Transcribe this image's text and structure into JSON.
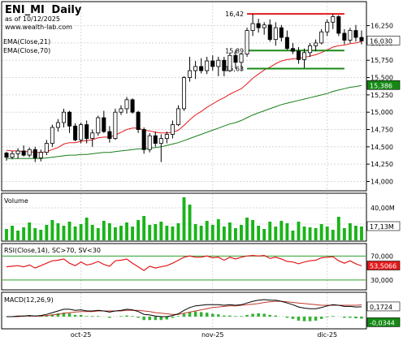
{
  "header": {
    "symbol": "ENI_MI",
    "interval": "Daily",
    "asof": "as of 10/12/2025",
    "site": "www.wealth-lab.com"
  },
  "colors": {
    "up_body": "#ffffff",
    "down_body": "#000000",
    "candle_outline": "#000000",
    "ema21": "#e31a1c",
    "ema70": "#1a7f1a",
    "resistance": "#e31a1c",
    "support": "#1a8a1a",
    "volume": "#19b419",
    "rsi_line": "#e31a1c",
    "rsi_band": "#2aa02a",
    "macd": "#000000",
    "macd_signal": "#c0392b",
    "macd_hist": "#33b233",
    "last_price_box": "#ffffff",
    "ema70_box": "#148a14",
    "rsi_box": "#e31a1c",
    "macd_neg_box": "#148a14"
  },
  "chart_data": [
    {
      "type": "candlestick",
      "name": "price",
      "x_labels": [
        {
          "label": "oct-25",
          "index": 13
        },
        {
          "label": "nov-25",
          "index": 36
        },
        {
          "label": "dic-25",
          "index": 56
        }
      ],
      "ohlc": [
        [
          14.41,
          14.43,
          14.3,
          14.35
        ],
        [
          14.35,
          14.44,
          14.32,
          14.4
        ],
        [
          14.4,
          14.48,
          14.33,
          14.44
        ],
        [
          14.44,
          14.52,
          14.36,
          14.38
        ],
        [
          14.38,
          14.49,
          14.35,
          14.46
        ],
        [
          14.46,
          14.5,
          14.28,
          14.34
        ],
        [
          14.34,
          14.46,
          14.29,
          14.42
        ],
        [
          14.42,
          14.6,
          14.38,
          14.55
        ],
        [
          14.55,
          14.82,
          14.5,
          14.78
        ],
        [
          14.78,
          14.9,
          14.72,
          14.85
        ],
        [
          14.85,
          15.05,
          14.78,
          15.0
        ],
        [
          15.0,
          15.02,
          14.7,
          14.8
        ],
        [
          14.8,
          14.84,
          14.58,
          14.6
        ],
        [
          14.6,
          14.85,
          14.55,
          14.82
        ],
        [
          14.82,
          14.88,
          14.55,
          14.62
        ],
        [
          14.62,
          14.75,
          14.5,
          14.7
        ],
        [
          14.7,
          14.95,
          14.66,
          14.92
        ],
        [
          14.92,
          15.02,
          14.7,
          14.72
        ],
        [
          14.72,
          14.8,
          14.56,
          14.62
        ],
        [
          14.62,
          15.05,
          14.6,
          15.0
        ],
        [
          15.0,
          15.1,
          14.96,
          15.05
        ],
        [
          15.05,
          15.22,
          14.98,
          15.18
        ],
        [
          15.18,
          15.2,
          14.98,
          15.0
        ],
        [
          15.0,
          15.02,
          14.7,
          14.75
        ],
        [
          14.75,
          14.78,
          14.4,
          14.46
        ],
        [
          14.46,
          14.7,
          14.42,
          14.66
        ],
        [
          14.66,
          14.72,
          14.5,
          14.55
        ],
        [
          14.55,
          14.68,
          14.28,
          14.62
        ],
        [
          14.62,
          14.72,
          14.55,
          14.68
        ],
        [
          14.68,
          14.88,
          14.62,
          14.82
        ],
        [
          14.82,
          15.1,
          14.8,
          15.05
        ],
        [
          15.05,
          15.52,
          15.02,
          15.5
        ],
        [
          15.5,
          15.8,
          15.44,
          15.6
        ],
        [
          15.6,
          15.74,
          15.48,
          15.66
        ],
        [
          15.66,
          15.78,
          15.56,
          15.6
        ],
        [
          15.6,
          15.8,
          15.55,
          15.74
        ],
        [
          15.74,
          15.82,
          15.6,
          15.66
        ],
        [
          15.66,
          15.8,
          15.52,
          15.75
        ],
        [
          15.75,
          15.8,
          15.52,
          15.6
        ],
        [
          15.6,
          15.86,
          15.58,
          15.82
        ],
        [
          15.82,
          15.9,
          15.63,
          15.72
        ],
        [
          15.72,
          15.85,
          15.6,
          15.84
        ],
        [
          15.84,
          16.22,
          15.8,
          16.18
        ],
        [
          16.18,
          16.42,
          16.1,
          16.28
        ],
        [
          16.28,
          16.35,
          16.15,
          16.22
        ],
        [
          16.22,
          16.3,
          16.12,
          16.26
        ],
        [
          16.26,
          16.34,
          16.02,
          16.05
        ],
        [
          16.05,
          16.3,
          15.96,
          16.22
        ],
        [
          16.22,
          16.26,
          16.02,
          16.08
        ],
        [
          16.08,
          16.18,
          15.9,
          15.92
        ],
        [
          15.92,
          16.0,
          15.84,
          15.88
        ],
        [
          15.88,
          15.94,
          15.7,
          15.76
        ],
        [
          15.76,
          15.92,
          15.64,
          15.86
        ],
        [
          15.86,
          16.0,
          15.8,
          15.96
        ],
        [
          15.96,
          16.05,
          15.88,
          16.0
        ],
        [
          16.0,
          16.2,
          15.98,
          16.16
        ],
        [
          16.16,
          16.34,
          16.1,
          16.3
        ],
        [
          16.3,
          16.42,
          16.2,
          16.38
        ],
        [
          16.38,
          16.4,
          16.1,
          16.14
        ],
        [
          16.14,
          16.2,
          15.98,
          16.04
        ],
        [
          16.04,
          16.22,
          16.0,
          16.18
        ],
        [
          16.18,
          16.26,
          16.02,
          16.08
        ],
        [
          16.08,
          16.18,
          15.98,
          16.03
        ]
      ],
      "ema21": [
        14.45,
        14.44,
        14.44,
        14.43,
        14.43,
        14.42,
        14.42,
        14.43,
        14.46,
        14.49,
        14.54,
        14.56,
        14.56,
        14.58,
        14.59,
        14.6,
        14.63,
        14.64,
        14.64,
        14.67,
        14.71,
        14.75,
        14.77,
        14.77,
        14.74,
        14.73,
        14.71,
        14.7,
        14.7,
        14.71,
        14.74,
        14.81,
        14.89,
        14.96,
        15.01,
        15.07,
        15.12,
        15.17,
        15.21,
        15.26,
        15.3,
        15.34,
        15.41,
        15.49,
        15.55,
        15.61,
        15.65,
        15.7,
        15.74,
        15.76,
        15.77,
        15.78,
        15.79,
        15.81,
        15.83,
        15.86,
        15.9,
        15.94,
        15.96,
        15.97,
        15.99,
        16.0,
        16.02
      ],
      "ema70": [
        14.33,
        14.33,
        14.33,
        14.33,
        14.33,
        14.33,
        14.33,
        14.34,
        14.35,
        14.36,
        14.37,
        14.38,
        14.38,
        14.39,
        14.39,
        14.4,
        14.41,
        14.42,
        14.42,
        14.43,
        14.44,
        14.45,
        14.46,
        14.47,
        14.47,
        14.48,
        14.49,
        14.5,
        14.52,
        14.54,
        14.56,
        14.59,
        14.62,
        14.65,
        14.68,
        14.71,
        14.74,
        14.77,
        14.8,
        14.83,
        14.85,
        14.88,
        14.92,
        14.96,
        14.99,
        15.02,
        15.05,
        15.08,
        15.11,
        15.13,
        15.15,
        15.17,
        15.19,
        15.21,
        15.23,
        15.25,
        15.27,
        15.3,
        15.32,
        15.34,
        15.36,
        15.37,
        15.386
      ],
      "levels": [
        {
          "label": "16,42",
          "value": 16.42,
          "from_index": 42,
          "to_index": 59,
          "kind": "resistance"
        },
        {
          "label": "15,89",
          "value": 15.89,
          "from_index": 42,
          "to_index": 59,
          "kind": "support"
        },
        {
          "label": "15,63",
          "value": 15.63,
          "from_index": 42,
          "to_index": 59,
          "kind": "support"
        }
      ],
      "legend": [
        "EMA(Close,21)",
        "EMA(Close,70)"
      ],
      "y_ticks": [
        "16,250",
        "16,000",
        "15,750",
        "15,500",
        "15,250",
        "15,000",
        "14,750",
        "14,500",
        "14,250",
        "14,000"
      ],
      "y_tick_values": [
        16.25,
        16.0,
        15.75,
        15.5,
        15.25,
        15.0,
        14.75,
        14.5,
        14.25,
        14.0
      ],
      "ylim": [
        13.9,
        16.55
      ],
      "last_price_label": "16,030",
      "ema70_label": "15,386"
    },
    {
      "type": "bar",
      "name": "volume",
      "title": "Volume",
      "values": [
        14,
        18,
        12,
        16,
        22,
        15,
        13,
        19,
        25,
        21,
        18,
        23,
        17,
        20,
        28,
        19,
        15,
        24,
        21,
        16,
        18,
        22,
        17,
        25,
        30,
        19,
        20,
        23,
        18,
        17,
        21,
        53,
        44,
        20,
        18,
        24,
        19,
        26,
        17,
        22,
        15,
        19,
        28,
        25,
        18,
        14,
        23,
        17,
        24,
        21,
        12,
        23,
        17,
        16,
        15,
        20,
        17,
        13,
        29,
        15,
        21,
        18,
        17
      ],
      "y_ticks": [
        "40,00M",
        "20,00M"
      ],
      "y_tick_values": [
        40,
        20
      ],
      "ylim": [
        0,
        55
      ],
      "last_value_label": "17,13M"
    },
    {
      "type": "line",
      "name": "rsi",
      "title": "RSI(Close,14), SC>70, SV<30",
      "values": [
        52,
        53,
        54,
        52,
        55,
        50,
        54,
        58,
        62,
        63,
        65,
        58,
        54,
        60,
        55,
        57,
        61,
        56,
        53,
        62,
        63,
        65,
        58,
        52,
        46,
        53,
        50,
        52,
        54,
        58,
        63,
        68,
        70,
        68,
        68,
        70,
        67,
        68,
        63,
        68,
        65,
        68,
        70,
        71,
        70,
        71,
        66,
        68,
        65,
        61,
        60,
        57,
        60,
        62,
        63,
        67,
        68,
        69,
        62,
        58,
        62,
        57,
        53.5
      ],
      "y_ticks": [
        "70,000",
        "30,000"
      ],
      "y_tick_values": [
        70,
        30
      ],
      "ylim": [
        15,
        88
      ],
      "last_value_label": "53,5066"
    },
    {
      "type": "line",
      "name": "macd",
      "title": "MACD(12,26,9)",
      "macd": [
        0.0,
        0.0,
        0.01,
        0.01,
        0.02,
        0.01,
        0.02,
        0.04,
        0.07,
        0.1,
        0.13,
        0.13,
        0.11,
        0.12,
        0.1,
        0.1,
        0.11,
        0.1,
        0.08,
        0.1,
        0.11,
        0.13,
        0.12,
        0.09,
        0.04,
        0.03,
        0.01,
        0.0,
        0.0,
        0.02,
        0.05,
        0.11,
        0.16,
        0.19,
        0.2,
        0.21,
        0.21,
        0.21,
        0.2,
        0.21,
        0.2,
        0.21,
        0.24,
        0.27,
        0.29,
        0.3,
        0.29,
        0.29,
        0.27,
        0.24,
        0.21,
        0.17,
        0.15,
        0.14,
        0.14,
        0.16,
        0.19,
        0.21,
        0.2,
        0.18,
        0.18,
        0.17,
        0.1724
      ],
      "signal": [
        0.0,
        0.0,
        0.0,
        0.01,
        0.01,
        0.01,
        0.01,
        0.02,
        0.03,
        0.04,
        0.06,
        0.07,
        0.08,
        0.09,
        0.09,
        0.09,
        0.1,
        0.1,
        0.1,
        0.1,
        0.1,
        0.11,
        0.11,
        0.11,
        0.1,
        0.09,
        0.07,
        0.06,
        0.05,
        0.04,
        0.04,
        0.06,
        0.08,
        0.1,
        0.12,
        0.14,
        0.16,
        0.17,
        0.18,
        0.19,
        0.19,
        0.2,
        0.21,
        0.22,
        0.23,
        0.25,
        0.26,
        0.27,
        0.27,
        0.26,
        0.25,
        0.24,
        0.23,
        0.22,
        0.21,
        0.2,
        0.2,
        0.2,
        0.2,
        0.2,
        0.2,
        0.2,
        0.2068
      ],
      "y_ticks": [
        "0,1724",
        "-0,0344"
      ],
      "ylim": [
        -0.2,
        0.4
      ],
      "last_value_label": "0,1724",
      "last_hist_label": "-0,0344"
    }
  ]
}
